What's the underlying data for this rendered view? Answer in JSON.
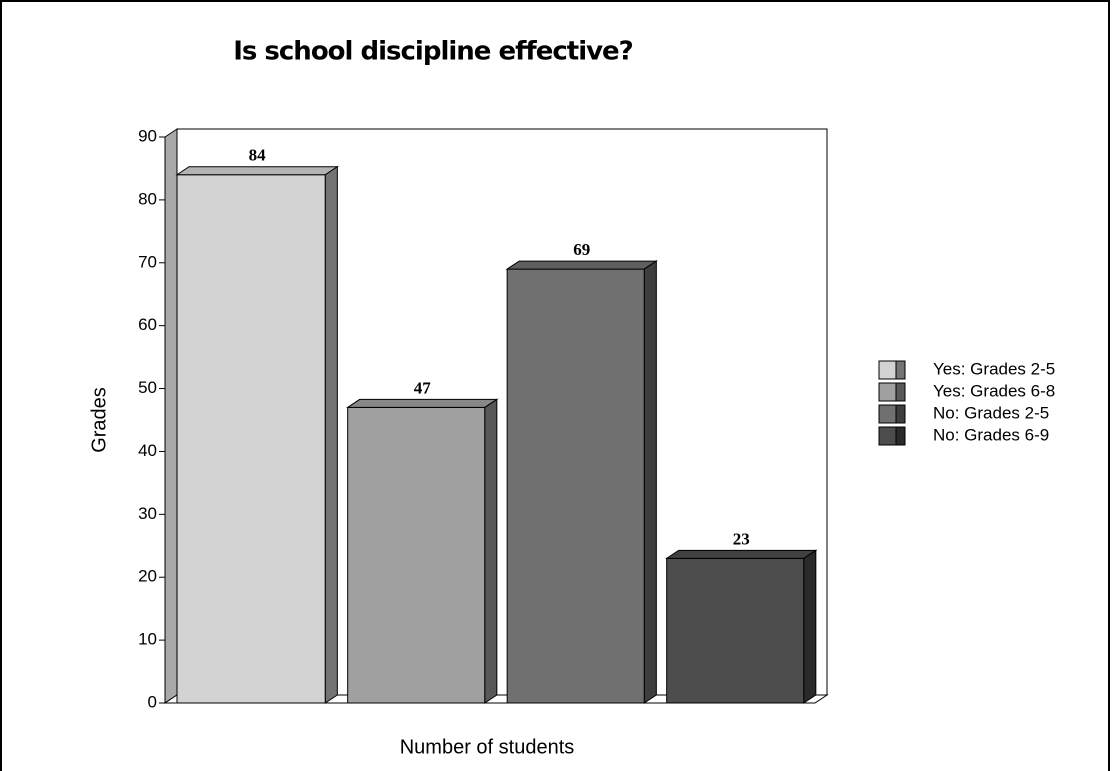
{
  "chart_data": {
    "type": "bar3d",
    "title": "Is school discipline effective?",
    "y_label": "Grades",
    "x_label": "Number of students",
    "series": [
      {
        "name": "Yes: Grades 2-5",
        "color": "#d3d3d3",
        "values": [
          84
        ]
      },
      {
        "name": "Yes: Grades 6-8",
        "color": "#a0a0a0",
        "values": [
          47
        ]
      },
      {
        "name": "No: Grades 2-5",
        "color": "#707070",
        "values": [
          69
        ]
      },
      {
        "name": "No: Grades 6-9",
        "color": "#4d4d4d",
        "values": [
          23
        ]
      }
    ],
    "ylim": [
      0,
      90
    ],
    "yticks": [
      0,
      10,
      20,
      30,
      40,
      50,
      60,
      70,
      80,
      90
    ],
    "legend": "right"
  }
}
